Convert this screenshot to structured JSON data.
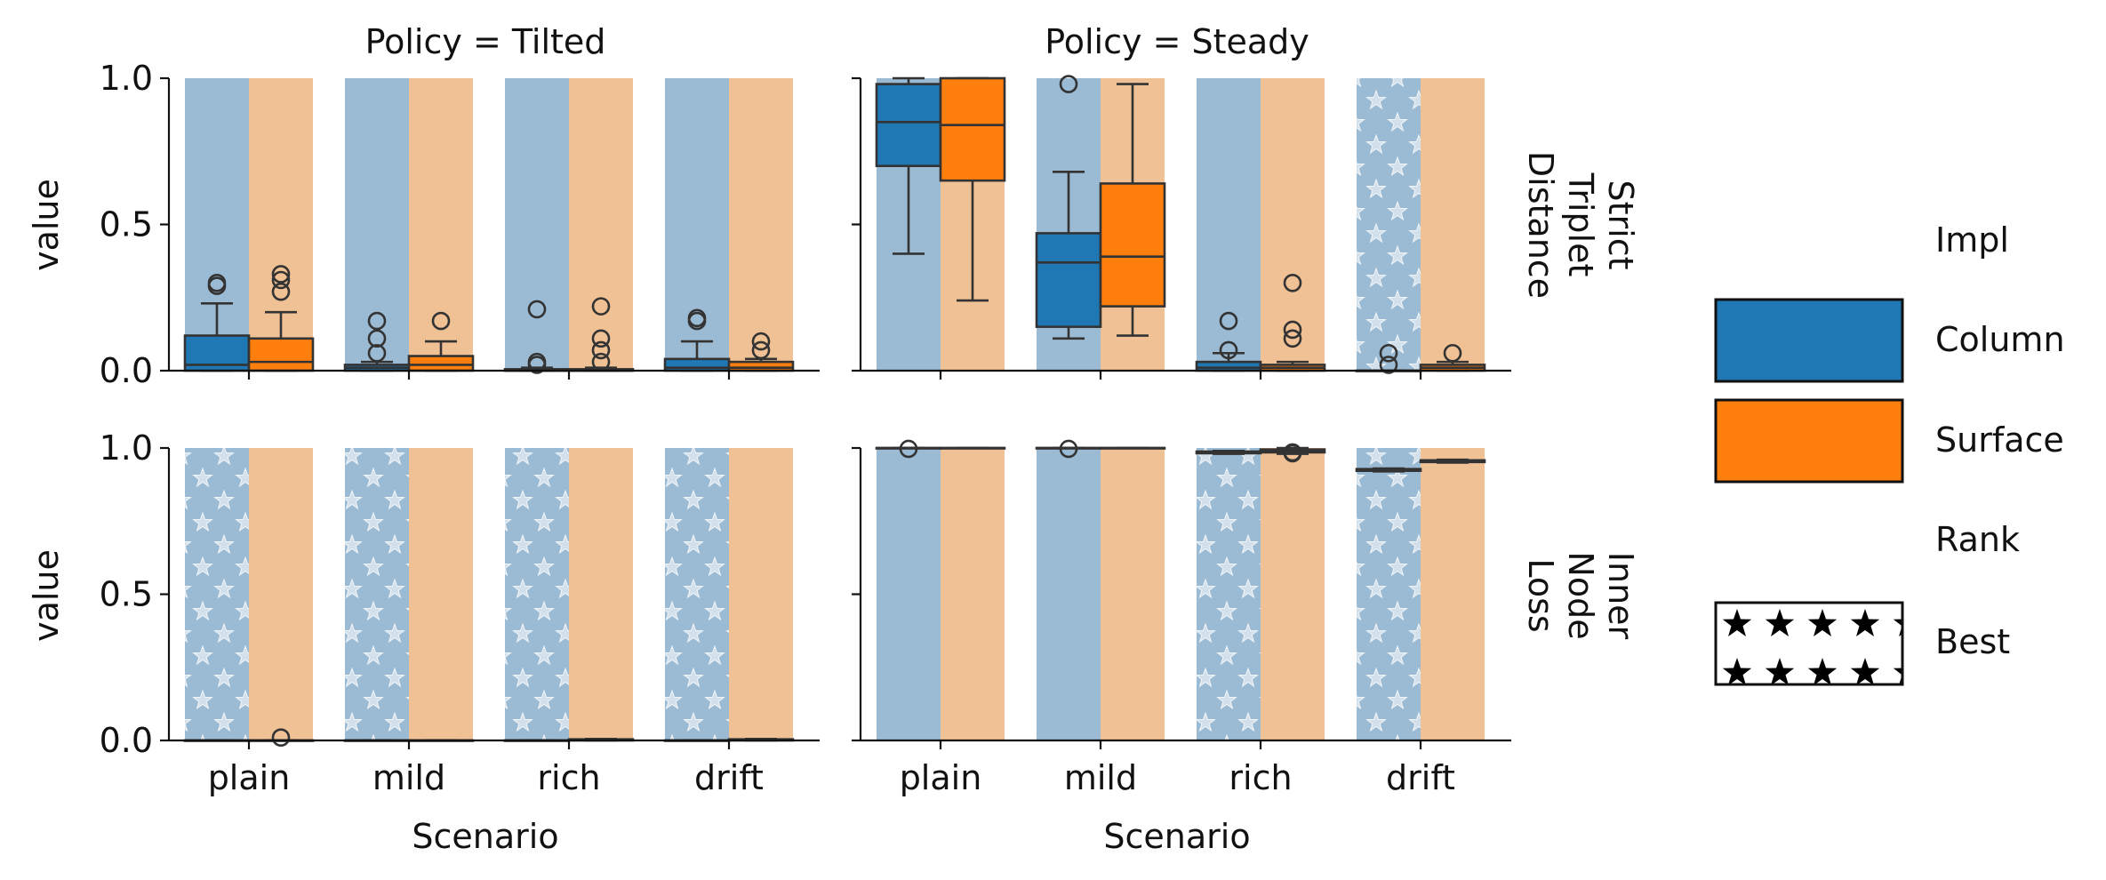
{
  "colors": {
    "column": "#1f77b4",
    "surface": "#ff7f0e",
    "column_bg": "#9bbad3",
    "surface_bg": "#f0c194",
    "outline": "#333333",
    "axis": "#111111"
  },
  "legend": {
    "impl_title": "Impl",
    "impl_items": [
      "Column",
      "Surface"
    ],
    "rank_title": "Rank",
    "rank_items": [
      "Best"
    ]
  },
  "chart_data": {
    "type": "box",
    "facet_columns": [
      "Policy = Tilted",
      "Policy = Steady"
    ],
    "facet_rows": [
      [
        "Strict",
        "Triplet",
        "Distance"
      ],
      [
        "Inner",
        "Node",
        "Loss"
      ]
    ],
    "categories": [
      "plain",
      "mild",
      "rich",
      "drift"
    ],
    "xlabel": "Scenario",
    "ylabel": "value",
    "ylim": [
      0,
      1
    ],
    "yticks": [
      "0.0",
      "0.5",
      "1.0"
    ],
    "hue": [
      "Column",
      "Surface"
    ],
    "panels": [
      {
        "row": 0,
        "col": 0,
        "best_marked": [
          [
            false,
            false
          ],
          [
            false,
            false
          ],
          [
            false,
            false
          ],
          [
            false,
            false
          ]
        ],
        "boxes": [
          [
            {
              "whislo": 0.0,
              "q1": 0.0,
              "med": 0.02,
              "q3": 0.12,
              "whishi": 0.23,
              "fliers": [
                0.29,
                0.3
              ]
            },
            {
              "whislo": 0.0,
              "q1": 0.0,
              "med": 0.03,
              "q3": 0.11,
              "whishi": 0.2,
              "fliers": [
                0.27,
                0.31,
                0.33
              ]
            }
          ],
          [
            {
              "whislo": 0.0,
              "q1": 0.0,
              "med": 0.01,
              "q3": 0.02,
              "whishi": 0.03,
              "fliers": [
                0.06,
                0.11,
                0.17
              ]
            },
            {
              "whislo": 0.0,
              "q1": 0.0,
              "med": 0.02,
              "q3": 0.05,
              "whishi": 0.1,
              "fliers": [
                0.17
              ]
            }
          ],
          [
            {
              "whislo": 0.0,
              "q1": 0.0,
              "med": 0.0,
              "q3": 0.005,
              "whishi": 0.01,
              "fliers": [
                0.02,
                0.03,
                0.21
              ]
            },
            {
              "whislo": 0.0,
              "q1": 0.0,
              "med": 0.0,
              "q3": 0.005,
              "whishi": 0.01,
              "fliers": [
                0.03,
                0.07,
                0.11,
                0.22
              ]
            }
          ],
          [
            {
              "whislo": 0.0,
              "q1": 0.0,
              "med": 0.01,
              "q3": 0.04,
              "whishi": 0.1,
              "fliers": [
                0.17,
                0.18
              ]
            },
            {
              "whislo": 0.0,
              "q1": 0.0,
              "med": 0.01,
              "q3": 0.03,
              "whishi": 0.04,
              "fliers": [
                0.07,
                0.1
              ]
            }
          ]
        ]
      },
      {
        "row": 0,
        "col": 1,
        "best_marked": [
          [
            false,
            false
          ],
          [
            false,
            false
          ],
          [
            false,
            false
          ],
          [
            true,
            false
          ]
        ],
        "boxes": [
          [
            {
              "whislo": 0.4,
              "q1": 0.7,
              "med": 0.85,
              "q3": 0.98,
              "whishi": 1.0,
              "fliers": []
            },
            {
              "whislo": 0.24,
              "q1": 0.65,
              "med": 0.84,
              "q3": 1.0,
              "whishi": 1.0,
              "fliers": []
            }
          ],
          [
            {
              "whislo": 0.11,
              "q1": 0.15,
              "med": 0.37,
              "q3": 0.47,
              "whishi": 0.68,
              "fliers": [
                0.98
              ]
            },
            {
              "whislo": 0.12,
              "q1": 0.22,
              "med": 0.39,
              "q3": 0.64,
              "whishi": 0.98,
              "fliers": []
            }
          ],
          [
            {
              "whislo": 0.0,
              "q1": 0.0,
              "med": 0.01,
              "q3": 0.03,
              "whishi": 0.06,
              "fliers": [
                0.07,
                0.17
              ]
            },
            {
              "whislo": 0.0,
              "q1": 0.0,
              "med": 0.01,
              "q3": 0.02,
              "whishi": 0.03,
              "fliers": [
                0.11,
                0.14,
                0.3
              ]
            }
          ],
          [
            {
              "whislo": 0.0,
              "q1": 0.0,
              "med": 0.0,
              "q3": 0.0,
              "whishi": 0.0,
              "fliers": [
                0.02,
                0.06
              ]
            },
            {
              "whislo": 0.0,
              "q1": 0.0,
              "med": 0.01,
              "q3": 0.02,
              "whishi": 0.03,
              "fliers": [
                0.06
              ]
            }
          ]
        ]
      },
      {
        "row": 1,
        "col": 0,
        "best_marked": [
          [
            true,
            false
          ],
          [
            true,
            false
          ],
          [
            true,
            false
          ],
          [
            true,
            false
          ]
        ],
        "boxes": [
          [
            {
              "whislo": 0.0,
              "q1": 0.0,
              "med": 0.0,
              "q3": 0.0,
              "whishi": 0.0,
              "fliers": []
            },
            {
              "whislo": 0.0,
              "q1": 0.0,
              "med": 0.0,
              "q3": 0.0,
              "whishi": 0.0,
              "fliers": [
                0.01
              ]
            }
          ],
          [
            {
              "whislo": 0.0,
              "q1": 0.0,
              "med": 0.0,
              "q3": 0.0,
              "whishi": 0.0,
              "fliers": []
            },
            {
              "whislo": 0.0,
              "q1": 0.0,
              "med": 0.0,
              "q3": 0.0,
              "whishi": 0.0,
              "fliers": []
            }
          ],
          [
            {
              "whislo": 0.0,
              "q1": 0.0,
              "med": 0.0,
              "q3": 0.0,
              "whishi": 0.0,
              "fliers": []
            },
            {
              "whislo": 0.0,
              "q1": 0.0,
              "med": 0.003,
              "q3": 0.004,
              "whishi": 0.005,
              "fliers": []
            }
          ],
          [
            {
              "whislo": 0.0,
              "q1": 0.0,
              "med": 0.0,
              "q3": 0.0,
              "whishi": 0.0,
              "fliers": []
            },
            {
              "whislo": 0.0,
              "q1": 0.0,
              "med": 0.003,
              "q3": 0.004,
              "whishi": 0.005,
              "fliers": []
            }
          ]
        ]
      },
      {
        "row": 1,
        "col": 1,
        "best_marked": [
          [
            false,
            false
          ],
          [
            false,
            false
          ],
          [
            true,
            false
          ],
          [
            true,
            false
          ]
        ],
        "boxes": [
          [
            {
              "whislo": 1.0,
              "q1": 1.0,
              "med": 1.0,
              "q3": 1.0,
              "whishi": 1.0,
              "fliers": [
                0.997
              ]
            },
            {
              "whislo": 1.0,
              "q1": 1.0,
              "med": 1.0,
              "q3": 1.0,
              "whishi": 1.0,
              "fliers": []
            }
          ],
          [
            {
              "whislo": 1.0,
              "q1": 1.0,
              "med": 1.0,
              "q3": 1.0,
              "whishi": 1.0,
              "fliers": [
                0.997
              ]
            },
            {
              "whislo": 1.0,
              "q1": 1.0,
              "med": 1.0,
              "q3": 1.0,
              "whishi": 1.0,
              "fliers": []
            }
          ],
          [
            {
              "whislo": 0.98,
              "q1": 0.982,
              "med": 0.985,
              "q3": 0.988,
              "whishi": 0.99,
              "fliers": []
            },
            {
              "whislo": 0.98,
              "q1": 0.985,
              "med": 0.99,
              "q3": 0.995,
              "whishi": 1.0,
              "fliers": [
                0.982,
                0.985
              ]
            }
          ],
          [
            {
              "whislo": 0.92,
              "q1": 0.922,
              "med": 0.925,
              "q3": 0.928,
              "whishi": 0.93,
              "fliers": []
            },
            {
              "whislo": 0.95,
              "q1": 0.952,
              "med": 0.955,
              "q3": 0.958,
              "whishi": 0.96,
              "fliers": []
            }
          ]
        ]
      }
    ]
  }
}
